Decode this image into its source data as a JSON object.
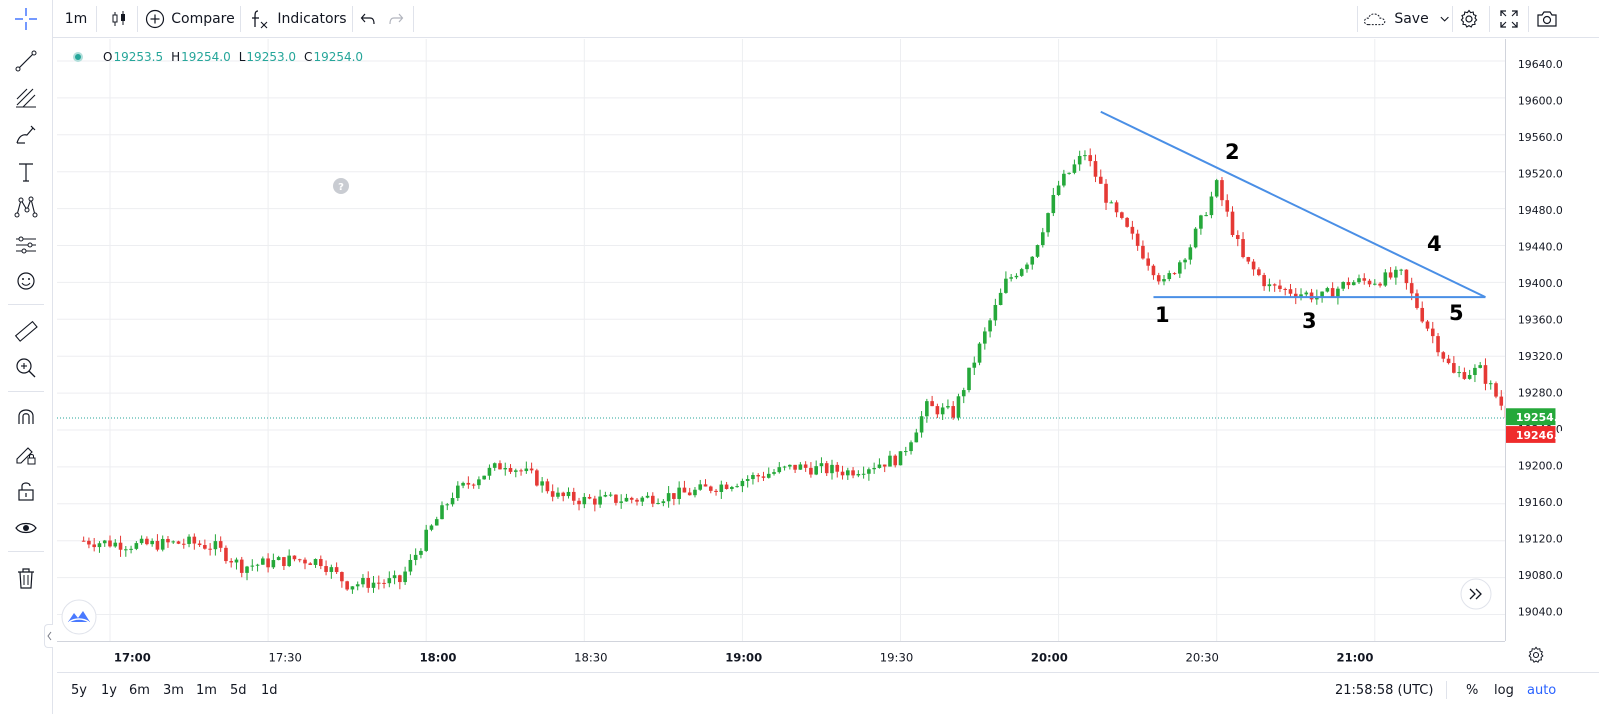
{
  "toolbar": {
    "interval": "1m",
    "compare_label": "Compare",
    "indicators_label": "Indicators",
    "save_label": "Save"
  },
  "legend": {
    "open_key": "O",
    "open": "19253.5",
    "high_key": "H",
    "high": "19254.0",
    "low_key": "L",
    "low": "19253.0",
    "close_key": "C",
    "close": "19254.0"
  },
  "colors": {
    "up": "#26a69a",
    "up_candle": "#25a83a",
    "down": "#ef5350",
    "down_candle": "#e53935",
    "trendline": "#4a8fe6",
    "grid": "#edeef1"
  },
  "price_axis": {
    "ticks": [
      "19640.0",
      "19600.0",
      "19560.0",
      "19520.0",
      "19480.0",
      "19440.0",
      "19400.0",
      "19360.0",
      "19320.0",
      "19280.0",
      "19240.0",
      "19200.0",
      "19160.0",
      "19120.0",
      "19080.0",
      "19040.0"
    ],
    "last_price": "19254.0",
    "bid_price": "19246.0"
  },
  "time_axis": {
    "ticks": [
      "17:00",
      "17:30",
      "18:00",
      "18:30",
      "19:00",
      "19:30",
      "20:00",
      "20:30",
      "21:00"
    ]
  },
  "annotations": [
    "1",
    "2",
    "3",
    "4",
    "5"
  ],
  "bottombar": {
    "ranges": [
      "5y",
      "1y",
      "6m",
      "3m",
      "1m",
      "5d",
      "1d"
    ],
    "clock": "21:58:58 (UTC)",
    "percent_label": "%",
    "log_label": "log",
    "auto_label": "auto"
  },
  "chart_data": {
    "type": "candlestick",
    "title": "",
    "interval": "1m",
    "x_range": [
      "16:55",
      "21:59"
    ],
    "ylim": [
      19020,
      19660
    ],
    "grid": true,
    "close_path": [
      [
        "16:55",
        19120
      ],
      [
        "17:05",
        19115
      ],
      [
        "17:15",
        19118
      ],
      [
        "17:20",
        19113
      ],
      [
        "17:25",
        19092
      ],
      [
        "17:35",
        19100
      ],
      [
        "17:40",
        19098
      ],
      [
        "17:45",
        19073
      ],
      [
        "17:55",
        19076
      ],
      [
        "18:00",
        19125
      ],
      [
        "18:05",
        19170
      ],
      [
        "18:10",
        19190
      ],
      [
        "18:15",
        19204
      ],
      [
        "18:20",
        19190
      ],
      [
        "18:25",
        19168
      ],
      [
        "18:30",
        19164
      ],
      [
        "18:40",
        19165
      ],
      [
        "18:50",
        19172
      ],
      [
        "19:00",
        19186
      ],
      [
        "19:10",
        19200
      ],
      [
        "19:20",
        19195
      ],
      [
        "19:30",
        19210
      ],
      [
        "19:35",
        19265
      ],
      [
        "19:40",
        19258
      ],
      [
        "19:45",
        19330
      ],
      [
        "19:50",
        19400
      ],
      [
        "19:55",
        19430
      ],
      [
        "20:00",
        19505
      ],
      [
        "20:05",
        19540
      ],
      [
        "20:10",
        19480
      ],
      [
        "20:15",
        19440
      ],
      [
        "20:20",
        19398
      ],
      [
        "20:25",
        19440
      ],
      [
        "20:30",
        19505
      ],
      [
        "20:35",
        19425
      ],
      [
        "20:40",
        19395
      ],
      [
        "20:50",
        19384
      ],
      [
        "20:55",
        19400
      ],
      [
        "21:00",
        19402
      ],
      [
        "21:05",
        19408
      ],
      [
        "21:10",
        19352
      ],
      [
        "21:15",
        19300
      ],
      [
        "21:20",
        19305
      ],
      [
        "21:25",
        19258
      ],
      [
        "21:30",
        19248
      ]
    ],
    "trendlines": [
      {
        "from": [
          "20:08",
          19585
        ],
        "to": [
          "21:21",
          19384
        ]
      },
      {
        "from": [
          "20:18",
          19384
        ],
        "to": [
          "21:21",
          19384
        ]
      }
    ]
  }
}
